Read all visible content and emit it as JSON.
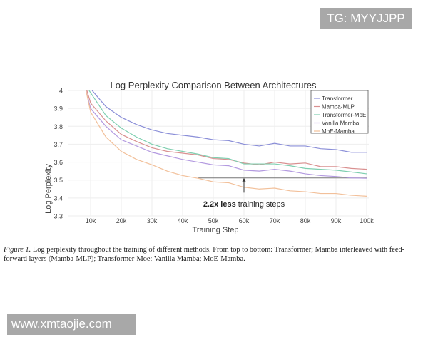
{
  "watermarks": {
    "top": "TG: MYYJJPP",
    "bottom": "www.xmtaojie.com"
  },
  "caption": {
    "label": "Figure 1.",
    "text": " Log perplexity throughout the training of different methods.  From top to bottom: Transformer; Mamba interleaved with feed-forward layers (Mamba-MLP); Transformer-Moe; Vanilla Mamba; MoE-Mamba."
  },
  "chart_data": {
    "type": "line",
    "title": "Log Perplexity Comparison Between Architectures",
    "xlabel": "Training Step",
    "ylabel": "Log Perplexity",
    "xlim": [
      0,
      100000
    ],
    "ylim": [
      3.3,
      4.0
    ],
    "xticks": [
      10000,
      20000,
      30000,
      40000,
      50000,
      60000,
      70000,
      80000,
      90000,
      100000
    ],
    "xtick_labels": [
      "10k",
      "20k",
      "30k",
      "40k",
      "50k",
      "60k",
      "70k",
      "80k",
      "90k",
      "100k"
    ],
    "yticks": [
      3.3,
      3.4,
      3.5,
      3.6,
      3.7,
      3.8,
      3.9,
      4.0
    ],
    "ytick_labels": [
      "3.3",
      "3.4",
      "3.5",
      "3.6",
      "3.7",
      "3.8",
      "3.9",
      "4"
    ],
    "grid": true,
    "legend_position": "top-right",
    "series": [
      {
        "name": "Transformer",
        "color": "#8b8fd8",
        "x": [
          10500,
          15000,
          20000,
          25000,
          30000,
          35000,
          40000,
          45000,
          50000,
          55000,
          60000,
          65000,
          70000,
          75000,
          80000,
          85000,
          90000,
          95000,
          100000
        ],
        "y": [
          4.0,
          3.91,
          3.85,
          3.81,
          3.78,
          3.76,
          3.75,
          3.74,
          3.725,
          3.72,
          3.7,
          3.69,
          3.705,
          3.69,
          3.69,
          3.675,
          3.67,
          3.655,
          3.655
        ]
      },
      {
        "name": "Mamba-MLP",
        "color": "#d99090",
        "x": [
          8800,
          10000,
          15000,
          20000,
          25000,
          30000,
          35000,
          40000,
          45000,
          50000,
          55000,
          60000,
          65000,
          70000,
          75000,
          80000,
          85000,
          90000,
          95000,
          100000
        ],
        "y": [
          4.0,
          3.93,
          3.83,
          3.755,
          3.715,
          3.68,
          3.66,
          3.65,
          3.64,
          3.62,
          3.615,
          3.595,
          3.585,
          3.6,
          3.59,
          3.595,
          3.575,
          3.575,
          3.565,
          3.56
        ]
      },
      {
        "name": "Transformer-MoE",
        "color": "#7fcfb0",
        "x": [
          9500,
          15000,
          20000,
          25000,
          30000,
          35000,
          40000,
          45000,
          50000,
          55000,
          60000,
          65000,
          70000,
          75000,
          80000,
          85000,
          90000,
          95000,
          100000
        ],
        "y": [
          4.0,
          3.86,
          3.79,
          3.74,
          3.7,
          3.675,
          3.66,
          3.645,
          3.625,
          3.62,
          3.59,
          3.59,
          3.59,
          3.58,
          3.565,
          3.56,
          3.555,
          3.545,
          3.535
        ]
      },
      {
        "name": "Vanilla Mamba",
        "color": "#b39ae0",
        "x": [
          8500,
          10000,
          15000,
          20000,
          25000,
          30000,
          35000,
          40000,
          45000,
          50000,
          55000,
          60000,
          65000,
          70000,
          75000,
          80000,
          85000,
          90000,
          95000,
          100000
        ],
        "y": [
          4.0,
          3.9,
          3.8,
          3.725,
          3.69,
          3.655,
          3.635,
          3.615,
          3.6,
          3.585,
          3.58,
          3.555,
          3.55,
          3.56,
          3.55,
          3.535,
          3.525,
          3.52,
          3.512,
          3.51
        ]
      },
      {
        "name": "MoE-Mamba",
        "color": "#f2c09a",
        "x": [
          8500,
          10000,
          15000,
          20000,
          25000,
          30000,
          35000,
          40000,
          45000,
          50000,
          55000,
          60000,
          65000,
          70000,
          75000,
          80000,
          85000,
          90000,
          95000,
          100000
        ],
        "y": [
          4.0,
          3.88,
          3.74,
          3.66,
          3.615,
          3.585,
          3.55,
          3.525,
          3.51,
          3.49,
          3.485,
          3.46,
          3.45,
          3.455,
          3.44,
          3.435,
          3.425,
          3.425,
          3.415,
          3.41
        ]
      }
    ],
    "reference_line": {
      "y": 3.512,
      "x": [
        45000,
        100000
      ]
    },
    "annotation": {
      "bold": "2.2x less",
      "text": " training steps",
      "arrow_x": 60000,
      "arrow_from_y": 3.43,
      "arrow_to_y": 3.512
    }
  }
}
